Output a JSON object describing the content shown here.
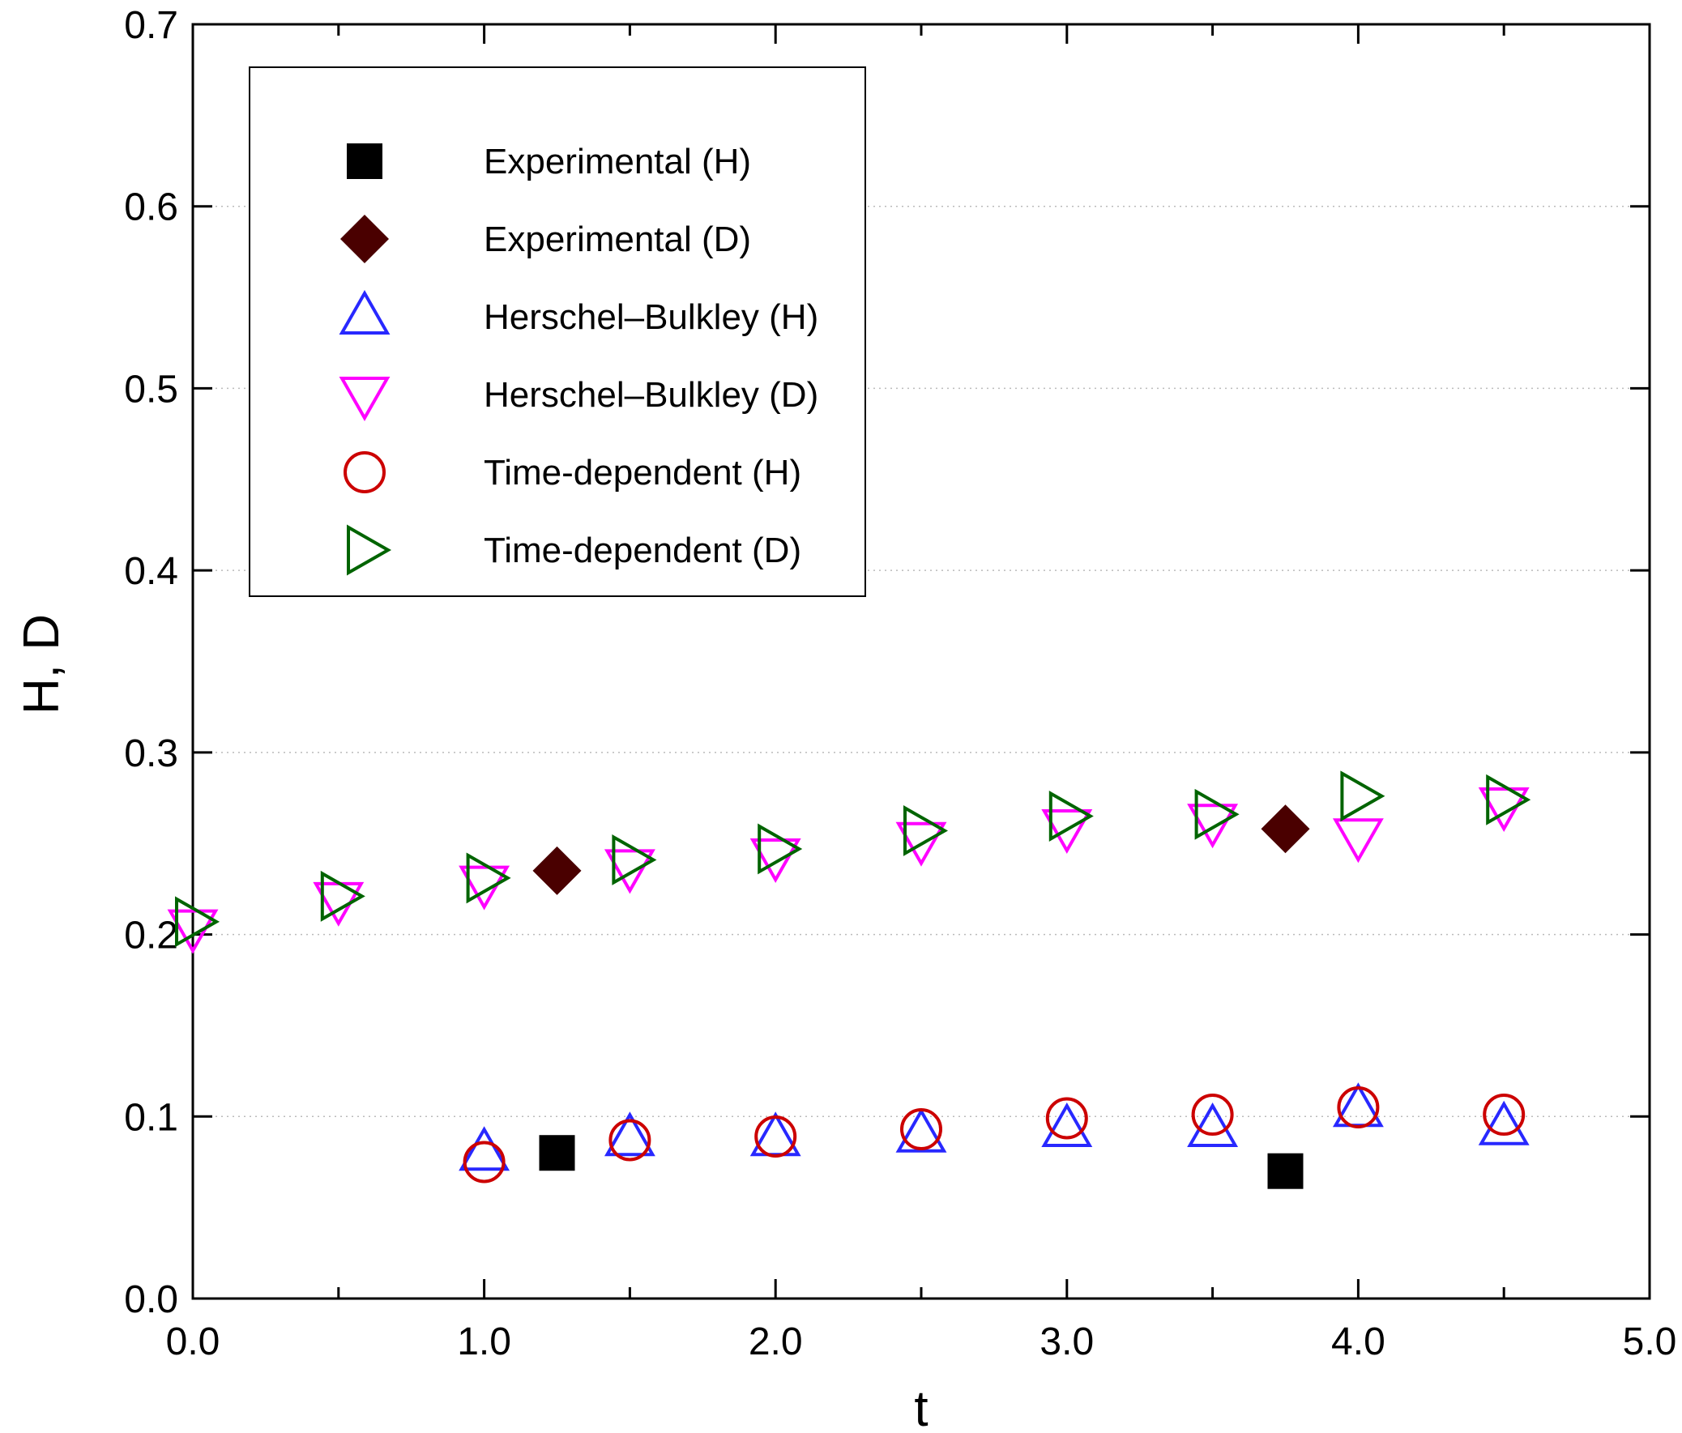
{
  "chart_data": {
    "type": "scatter",
    "title": "",
    "xlabel": "t",
    "ylabel": "H, D",
    "xlim": [
      0,
      5
    ],
    "ylim": [
      0,
      0.7
    ],
    "grid": "dotted horizontal",
    "legend_position": "top-left",
    "x_ticks": [
      {
        "value": 0,
        "label": "0.0"
      },
      {
        "value": 1,
        "label": "1.0"
      },
      {
        "value": 2,
        "label": "2.0"
      },
      {
        "value": 3,
        "label": "3.0"
      },
      {
        "value": 4,
        "label": "4.0"
      },
      {
        "value": 5,
        "label": "5.0"
      }
    ],
    "x_minor_ticks": [
      0.5,
      1.5,
      2.5,
      3.5,
      4.5
    ],
    "y_ticks": [
      {
        "value": 0.0,
        "label": "0.0"
      },
      {
        "value": 0.1,
        "label": "0.1"
      },
      {
        "value": 0.2,
        "label": "0.2"
      },
      {
        "value": 0.3,
        "label": "0.3"
      },
      {
        "value": 0.4,
        "label": "0.4"
      },
      {
        "value": 0.5,
        "label": "0.5"
      },
      {
        "value": 0.6,
        "label": "0.6"
      },
      {
        "value": 0.7,
        "label": "0.7"
      }
    ],
    "series": [
      {
        "name": "Experimental (H)",
        "marker": "square-filled",
        "color": "#000000",
        "points": [
          [
            1.25,
            0.08
          ],
          [
            3.75,
            0.07
          ]
        ]
      },
      {
        "name": "Experimental (D)",
        "marker": "diamond-filled",
        "color": "#4a0000",
        "points": [
          [
            1.25,
            0.235
          ],
          [
            3.75,
            0.258
          ]
        ]
      },
      {
        "name": "Herschel–Bulkley (H)",
        "marker": "triangle-up-open",
        "color": "#2828ff",
        "points": [
          [
            1.0,
            0.08
          ],
          [
            1.5,
            0.088
          ],
          [
            2.0,
            0.088
          ],
          [
            2.5,
            0.09
          ],
          [
            3.0,
            0.093
          ],
          [
            3.5,
            0.093
          ],
          [
            4.0,
            0.104
          ],
          [
            4.5,
            0.094
          ]
        ]
      },
      {
        "name": "Herschel–Bulkley (D)",
        "marker": "triangle-down-open",
        "color": "#ff00ff",
        "points": [
          [
            0.0,
            0.204
          ],
          [
            0.5,
            0.219
          ],
          [
            1.0,
            0.228
          ],
          [
            1.5,
            0.237
          ],
          [
            2.0,
            0.243
          ],
          [
            2.5,
            0.252
          ],
          [
            3.0,
            0.259
          ],
          [
            3.5,
            0.262
          ],
          [
            4.0,
            0.254
          ],
          [
            4.5,
            0.271
          ]
        ]
      },
      {
        "name": "Time-dependent (H)",
        "marker": "circle-open",
        "color": "#cc0000",
        "points": [
          [
            1.0,
            0.075
          ],
          [
            1.5,
            0.087
          ],
          [
            2.0,
            0.089
          ],
          [
            2.5,
            0.093
          ],
          [
            3.0,
            0.099
          ],
          [
            3.5,
            0.101
          ],
          [
            4.0,
            0.105
          ],
          [
            4.5,
            0.101
          ]
        ]
      },
      {
        "name": "Time-dependent (D)",
        "marker": "triangle-right-open",
        "color": "#006400",
        "points": [
          [
            0.0,
            0.207
          ],
          [
            0.5,
            0.221
          ],
          [
            1.0,
            0.231
          ],
          [
            1.5,
            0.241
          ],
          [
            2.0,
            0.247
          ],
          [
            2.5,
            0.257
          ],
          [
            3.0,
            0.265
          ],
          [
            3.5,
            0.266
          ],
          [
            4.0,
            0.276
          ],
          [
            4.5,
            0.274
          ]
        ]
      }
    ]
  }
}
